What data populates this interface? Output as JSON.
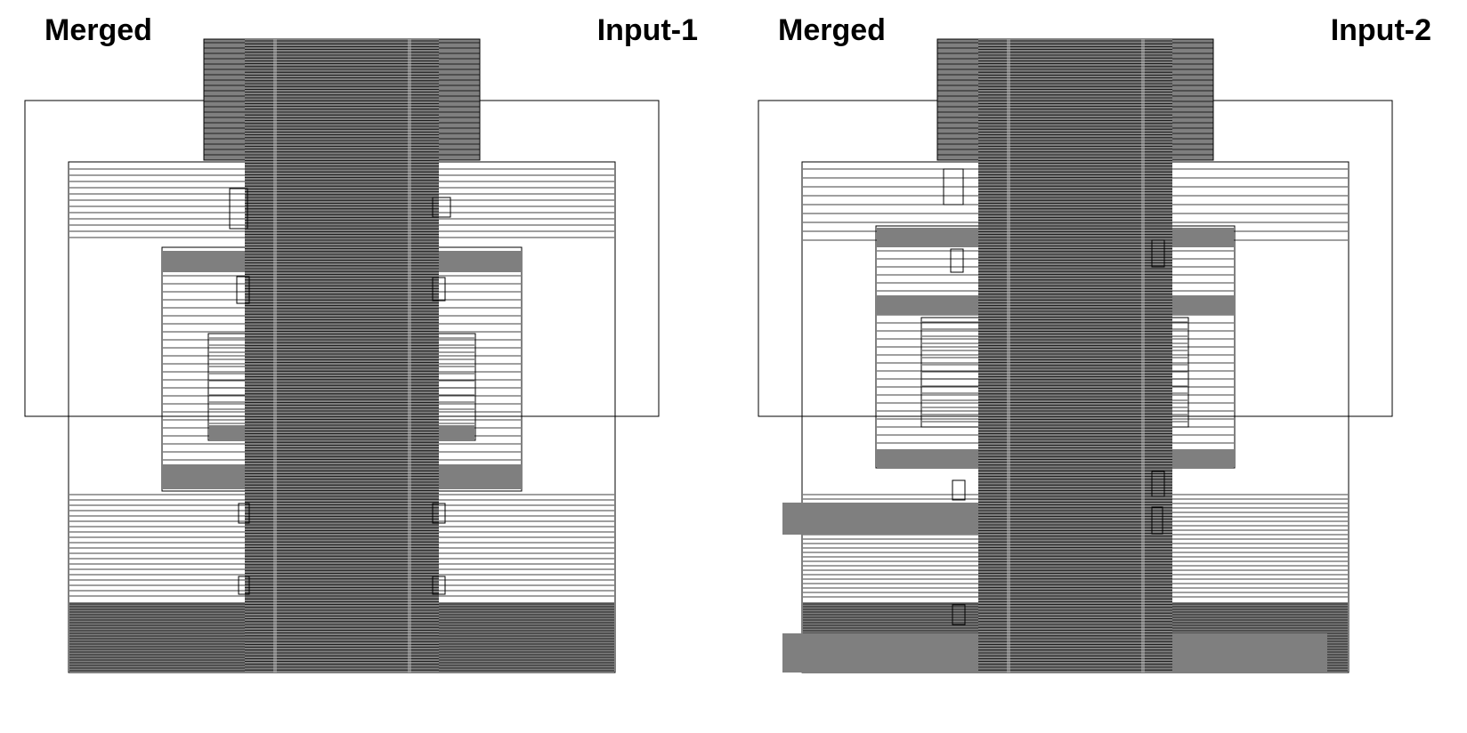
{
  "figure": {
    "panels": [
      {
        "left_label": "Merged",
        "right_label": "Input-1",
        "variant": 1
      },
      {
        "left_label": "Merged",
        "right_label": "Input-2",
        "variant": 2
      }
    ],
    "colors": {
      "line": "#000000",
      "dense_fill": "#7f7f7f",
      "connector": "#b8b8b8",
      "background": "#ffffff"
    }
  }
}
